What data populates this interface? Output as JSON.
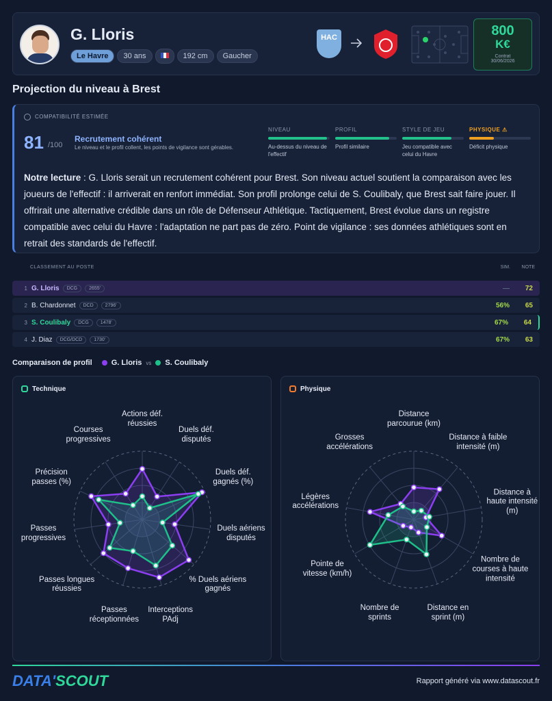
{
  "header": {
    "name": "G. Lloris",
    "tags": [
      "Le Havre",
      "30 ans",
      "192 cm",
      "Gaucher"
    ],
    "club_from": "HAC",
    "value": "800",
    "currency": "K€",
    "contract_label": "Contrat",
    "contract_date": "30/06/2026"
  },
  "section_title": "Projection du niveau à Brest",
  "compat": {
    "label": "COMPATIBILITÉ ESTIMÉE",
    "score": "81",
    "score_max": "/100",
    "verdict": "Recrutement cohérent",
    "verdict_desc": "Le niveau et le profil collent, les points de vigilance sont gérables.",
    "criteria": [
      {
        "name": "NIVEAU",
        "desc": "Au-dessus du niveau de l'effectif",
        "fill": 95,
        "color": "#22c08a"
      },
      {
        "name": "PROFIL",
        "desc": "Profil similaire",
        "fill": 88,
        "color": "#22c08a"
      },
      {
        "name": "STYLE DE JEU",
        "desc": "Jeu compatible avec celui du Havre",
        "fill": 80,
        "color": "#22c08a"
      },
      {
        "name": "PHYSIQUE ⚠",
        "desc": "Déficit physique",
        "fill": 40,
        "color": "#f0a020"
      }
    ]
  },
  "reading": {
    "lead": "Notre lecture",
    "text": " : G. Lloris serait un recrutement cohérent pour Brest. Son niveau actuel soutient la comparaison avec les joueurs de l'effectif : il arriverait en renfort immédiat. Son profil prolonge celui de S. Coulibaly, que Brest sait faire jouer. Il offrirait une alternative crédible dans un rôle de Défenseur Athlétique. Tactiquement, Brest évolue dans un registre compatible avec celui du Havre : l'adaptation ne part pas de zéro. Point de vigilance : ses données athlétiques sont en retrait des standards de l'effectif."
  },
  "ranking": {
    "title": "CLASSEMENT AU POSTE",
    "col_sim": "SIM.",
    "col_note": "NOTE",
    "rows": [
      {
        "rank": "1",
        "name": "G. Lloris",
        "pos": "DCG",
        "elo": "2655'",
        "sim": "—",
        "note": "72"
      },
      {
        "rank": "2",
        "name": "B. Chardonnet",
        "pos": "DCD",
        "elo": "2796'",
        "sim": "56%",
        "note": "65"
      },
      {
        "rank": "3",
        "name": "S. Coulibaly",
        "pos": "DCG",
        "elo": "1478'",
        "sim": "67%",
        "note": "64"
      },
      {
        "rank": "4",
        "name": "J. Diaz",
        "pos": "DCG/DCD",
        "elo": "1730'",
        "sim": "67%",
        "note": "63"
      }
    ]
  },
  "comparison": {
    "title": "Comparaison de profil",
    "vs": "vs"
  },
  "chart_data": [
    {
      "type": "radar",
      "title": "Technique",
      "rlim": [
        0,
        100
      ],
      "rticks": [
        25,
        50,
        75,
        100
      ],
      "axes": [
        "Actions déf. réussies",
        "Duels déf. disputés",
        "Duels déf. gagnés (%)",
        "Duels aériens disputés",
        "% Duels aériens gagnés",
        "Interceptions PAdj",
        "Passes réceptionnées",
        "Passes longues réussies",
        "Passes progressives",
        "Précision passes (%)",
        "Courses progressives"
      ],
      "series": [
        {
          "name": "G. Lloris",
          "color": "#8b3ff0",
          "values": [
            74,
            40,
            96,
            48,
            90,
            88,
            74,
            75,
            50,
            82,
            45
          ]
        },
        {
          "name": "S. Coulibaly",
          "color": "#1fbf8a",
          "values": [
            34,
            20,
            90,
            30,
            58,
            70,
            48,
            63,
            33,
            70,
            25
          ]
        }
      ]
    },
    {
      "type": "radar",
      "title": "Physique",
      "rlim": [
        0,
        100
      ],
      "rticks": [
        25,
        50,
        75,
        100
      ],
      "axes": [
        "Distance parcourue (km)",
        "Distance à faible intensité (m)",
        "Distance à haute intensité (m)",
        "Nombre de courses à haute intensité",
        "Distance en sprint (m)",
        "Nombre de sprints",
        "Pointe de vitesse (km/h)",
        "Légères accélérations",
        "Grosses accélérations"
      ],
      "series": [
        {
          "color": "#8b3ff0",
          "values": [
            47,
            58,
            18,
            47,
            20,
            12,
            18,
            65,
            30
          ]
        },
        {
          "color": "#1fbf8a",
          "values": [
            12,
            17,
            23,
            22,
            54,
            31,
            74,
            38,
            25
          ]
        }
      ]
    }
  ],
  "footer": {
    "brand_a": "DATA'",
    "brand_b": "SCOUT",
    "note": "Rapport généré via www.datascout.fr"
  }
}
